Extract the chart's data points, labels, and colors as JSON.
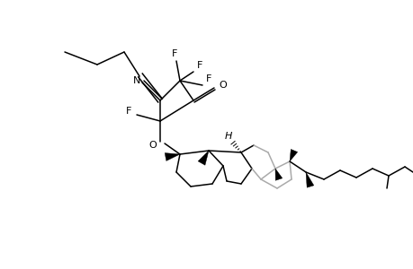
{
  "background_color": "#ffffff",
  "line_color": "#000000",
  "gray_color": "#aaaaaa",
  "fig_width": 4.6,
  "fig_height": 3.0,
  "dpi": 100,
  "xlim": [
    0,
    9.2
  ],
  "ylim": [
    0,
    6.0
  ]
}
